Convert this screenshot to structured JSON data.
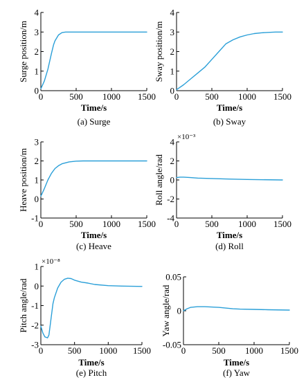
{
  "colors": {
    "line": "#2a9fd8",
    "axis": "#000000"
  },
  "chart_data": [
    {
      "type": "line",
      "caption": "(a) Surge",
      "xlabel": "Time/s",
      "ylabel": "Surge position/m",
      "xlim": [
        0,
        1500
      ],
      "ylim": [
        0,
        4
      ],
      "xticks": [
        0,
        500,
        1000,
        1500
      ],
      "xtick_labels": [
        "0",
        "500",
        "1000",
        "1500"
      ],
      "yticks": [
        0,
        1,
        2,
        3,
        4
      ],
      "ytick_labels": [
        "0",
        "1",
        "2",
        "3",
        "4"
      ],
      "multiplier": "",
      "x": [
        0,
        50,
        100,
        150,
        180,
        200,
        250,
        300,
        350,
        400,
        500,
        700,
        1000,
        1500
      ],
      "y": [
        0.1,
        0.5,
        1.1,
        1.9,
        2.35,
        2.55,
        2.85,
        2.97,
        3.0,
        3.0,
        3.0,
        3.0,
        3.0,
        3.0
      ]
    },
    {
      "type": "line",
      "caption": "(b) Sway",
      "xlabel": "Time/s",
      "ylabel": "Sway position/m",
      "xlim": [
        0,
        1500
      ],
      "ylim": [
        0,
        4
      ],
      "xticks": [
        0,
        500,
        1000,
        1500
      ],
      "xtick_labels": [
        "0",
        "500",
        "1000",
        "1500"
      ],
      "yticks": [
        0,
        1,
        2,
        3,
        4
      ],
      "ytick_labels": [
        "0",
        "1",
        "2",
        "3",
        "4"
      ],
      "multiplier": "",
      "x": [
        0,
        100,
        200,
        300,
        400,
        500,
        600,
        700,
        750,
        800,
        900,
        1000,
        1100,
        1200,
        1300,
        1400,
        1500
      ],
      "y": [
        0.05,
        0.3,
        0.6,
        0.9,
        1.2,
        1.6,
        2.0,
        2.4,
        2.5,
        2.6,
        2.75,
        2.85,
        2.92,
        2.96,
        2.98,
        3.0,
        3.0
      ]
    },
    {
      "type": "line",
      "caption": "(c) Heave",
      "xlabel": "Time/s",
      "ylabel": "Heave position/m",
      "xlim": [
        0,
        1500
      ],
      "ylim": [
        -1,
        3
      ],
      "xticks": [
        0,
        500,
        1000,
        1500
      ],
      "xtick_labels": [
        "0",
        "500",
        "1000",
        "1500"
      ],
      "yticks": [
        -1,
        0,
        1,
        2,
        3
      ],
      "ytick_labels": [
        "-1",
        "0",
        "1",
        "2",
        "3"
      ],
      "multiplier": "",
      "x": [
        0,
        50,
        100,
        150,
        200,
        250,
        300,
        400,
        500,
        600,
        800,
        1000,
        1500
      ],
      "y": [
        0.15,
        0.55,
        1.0,
        1.35,
        1.6,
        1.75,
        1.85,
        1.95,
        1.99,
        2.0,
        2.0,
        2.0,
        2.0
      ]
    },
    {
      "type": "line",
      "caption": "(d) Roll",
      "xlabel": "Time/s",
      "ylabel": "Roll angle/rad",
      "xlim": [
        0,
        1500
      ],
      "ylim": [
        -4,
        4
      ],
      "xticks": [
        0,
        500,
        1000,
        1500
      ],
      "xtick_labels": [
        "0",
        "500",
        "1000",
        "1500"
      ],
      "yticks": [
        -4,
        -2,
        0,
        2,
        4
      ],
      "ytick_labels": [
        "-4",
        "-2",
        "0",
        "2",
        "4"
      ],
      "multiplier": "×10⁻³",
      "x": [
        0,
        50,
        100,
        200,
        300,
        500,
        700,
        1000,
        1500
      ],
      "y": [
        0.25,
        0.3,
        0.3,
        0.25,
        0.2,
        0.15,
        0.1,
        0.05,
        0.0
      ]
    },
    {
      "type": "line",
      "caption": "(e) Pitch",
      "xlabel": "Time/s",
      "ylabel": "Pitch angle/rad",
      "xlim": [
        0,
        1500
      ],
      "ylim": [
        -3,
        1
      ],
      "xticks": [
        0,
        500,
        1000,
        1500
      ],
      "xtick_labels": [
        "0",
        "500",
        "1000",
        "1500"
      ],
      "yticks": [
        -3,
        -2,
        -1,
        0,
        1
      ],
      "ytick_labels": [
        "-3",
        "-2",
        "-1",
        "0",
        "1"
      ],
      "multiplier": "×10⁻⁸",
      "x": [
        0,
        30,
        60,
        100,
        120,
        150,
        180,
        200,
        250,
        300,
        350,
        400,
        450,
        500,
        600,
        700,
        800,
        1000,
        1200,
        1500
      ],
      "y": [
        -2.05,
        -2.4,
        -2.6,
        -2.65,
        -2.5,
        -1.7,
        -0.9,
        -0.6,
        -0.1,
        0.2,
        0.35,
        0.4,
        0.38,
        0.3,
        0.2,
        0.15,
        0.08,
        0.02,
        0.0,
        -0.02
      ]
    },
    {
      "type": "line",
      "caption": "(f) Yaw",
      "xlabel": "Time/s",
      "ylabel": "Yaw angle/rad",
      "xlim": [
        0,
        1500
      ],
      "ylim": [
        -0.05,
        0.05
      ],
      "xticks": [
        0,
        500,
        1000,
        1500
      ],
      "xtick_labels": [
        "0",
        "500",
        "1000",
        "1500"
      ],
      "yticks": [
        -0.05,
        0,
        0.05
      ],
      "ytick_labels": [
        "-0.05",
        "0",
        "0.05"
      ],
      "multiplier": "",
      "x": [
        0,
        50,
        100,
        200,
        300,
        400,
        500,
        600,
        700,
        800,
        1000,
        1200,
        1500
      ],
      "y": [
        0.0,
        0.003,
        0.005,
        0.006,
        0.006,
        0.0055,
        0.005,
        0.004,
        0.003,
        0.0025,
        0.002,
        0.0015,
        0.001
      ]
    }
  ]
}
